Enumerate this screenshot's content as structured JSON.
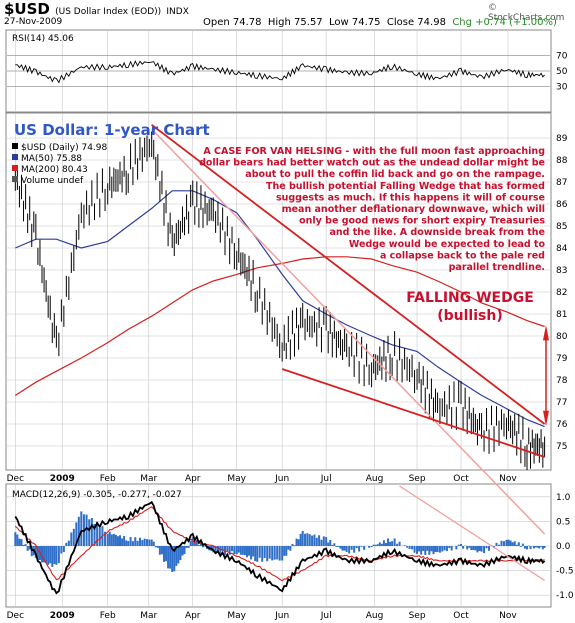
{
  "header": {
    "symbol": "$USD",
    "description": "(US Dollar Index (EOD))",
    "exchange": "INDX",
    "date": "27-Nov-2009",
    "watermark": "© StockCharts.com",
    "open": "Open 74.78",
    "high": "High 75.57",
    "low": "Low 74.75",
    "close": "Close 74.98",
    "change": "Chg +0.74 (+1.00%)"
  },
  "colors": {
    "price": "#000000",
    "ma50": "#2c3e9e",
    "ma200": "#d62020",
    "wedge": "#d62020",
    "channel": "#f2a0a0",
    "title": "#2f57c8",
    "annotation": "#c8102e",
    "macd_hist": "#2f6fc8",
    "grid": "#c8c8c8"
  },
  "rsi_panel": {
    "legend": "RSI(14) 45.06",
    "levels": [
      "70",
      "50",
      "30"
    ]
  },
  "price_panel": {
    "title": "US Dollar: 1-year Chart",
    "legend": [
      {
        "text": "$USD (Daily) 74.98",
        "color": "#000000"
      },
      {
        "text": "MA(50) 75.88",
        "color": "#2c3e9e"
      },
      {
        "text": "MA(200) 80.43",
        "color": "#d62020"
      },
      {
        "text": "Volume undef",
        "color": "#555555"
      }
    ],
    "commentary": [
      "A CASE FOR VAN HELSING - with the full moon fast approaching",
      "dollar bears had better watch out as the undead dollar might be",
      "about to pull the coffin lid back and go on the rampage.",
      "The bullish potential Falling Wedge that has formed",
      "suggests as much. If this happens it will of course",
      "mean another deflationary downwave, which will",
      "only be good news for short expiry Treasuries",
      "and the like. A downside break from the",
      "Wedge would be expected to lead to",
      "a collapse back to the pale red",
      "parallel trendline."
    ],
    "pattern_label": "FALLING WEDGE",
    "pattern_sublabel": "(bullish)",
    "y_ticks": [
      "89",
      "88",
      "87",
      "86",
      "85",
      "84",
      "83",
      "82",
      "81",
      "80",
      "79",
      "78",
      "77",
      "76",
      "75"
    ]
  },
  "macd_panel": {
    "legend": "MACD(12,26,9) -0.305, -0.277, -0.027",
    "y_ticks": [
      "1.0",
      "0.5",
      "0.0",
      "-0.5",
      "-1.0"
    ]
  },
  "x_axis": [
    "Dec",
    "2009",
    "Feb",
    "Mar",
    "Apr",
    "May",
    "Jun",
    "Jul",
    "Aug",
    "Sep",
    "Oct",
    "Nov"
  ],
  "chart_data": {
    "type": "line",
    "title": "US Dollar: 1-year Chart",
    "x": [
      "2008-12-01",
      "2008-12-15",
      "2008-12-29",
      "2009-01-15",
      "2009-02-02",
      "2009-02-16",
      "2009-03-04",
      "2009-03-18",
      "2009-04-01",
      "2009-04-15",
      "2009-05-01",
      "2009-05-15",
      "2009-06-01",
      "2009-06-15",
      "2009-07-01",
      "2009-07-15",
      "2009-08-01",
      "2009-08-15",
      "2009-09-01",
      "2009-09-15",
      "2009-10-01",
      "2009-10-15",
      "2009-11-01",
      "2009-11-15",
      "2009-11-27"
    ],
    "ylim": [
      74,
      90
    ],
    "series": [
      {
        "name": "$USD (Daily) 74.98",
        "values": [
          87.2,
          84.5,
          79.5,
          85.5,
          86.8,
          87.5,
          88.8,
          84.2,
          86.0,
          85.6,
          83.8,
          82.0,
          79.5,
          80.6,
          80.3,
          79.4,
          78.5,
          79.2,
          78.2,
          76.7,
          76.9,
          75.6,
          76.1,
          75.0,
          74.98
        ]
      },
      {
        "name": "MA(50) 75.88",
        "values": [
          84.0,
          84.4,
          84.4,
          84.0,
          84.3,
          85.0,
          85.8,
          86.6,
          86.6,
          86.2,
          85.6,
          84.4,
          82.8,
          81.6,
          81.0,
          80.5,
          80.0,
          79.6,
          79.3,
          78.6,
          77.9,
          77.3,
          76.7,
          76.2,
          75.88
        ]
      },
      {
        "name": "MA(200) 80.43",
        "values": [
          77.3,
          77.9,
          78.4,
          79.0,
          79.7,
          80.3,
          80.9,
          81.5,
          82.1,
          82.5,
          82.8,
          83.1,
          83.3,
          83.5,
          83.6,
          83.6,
          83.5,
          83.2,
          82.9,
          82.5,
          82.0,
          81.5,
          81.1,
          80.7,
          80.43
        ]
      }
    ],
    "wedge_lines": [
      {
        "from": [
          "2009-03-04",
          89.6
        ],
        "to": [
          "2009-11-27",
          76.0
        ]
      },
      {
        "from": [
          "2009-06-01",
          78.5
        ],
        "to": [
          "2009-11-27",
          74.5
        ]
      }
    ],
    "rsi": [
      58,
      49,
      37,
      55,
      55,
      58,
      62,
      46,
      56,
      52,
      48,
      44,
      40,
      57,
      52,
      48,
      47,
      56,
      46,
      40,
      50,
      42,
      52,
      45,
      45.06
    ],
    "macd": [
      0.6,
      -0.2,
      -1.0,
      0.3,
      0.5,
      0.6,
      0.9,
      -0.1,
      0.2,
      -0.1,
      -0.3,
      -0.6,
      -0.9,
      -0.3,
      -0.1,
      -0.3,
      -0.3,
      -0.1,
      -0.3,
      -0.4,
      -0.3,
      -0.4,
      -0.2,
      -0.3,
      -0.305
    ],
    "macd_signal": [
      0.4,
      0.0,
      -0.7,
      -0.2,
      0.3,
      0.5,
      0.8,
      0.3,
      0.1,
      0.0,
      -0.2,
      -0.4,
      -0.7,
      -0.5,
      -0.2,
      -0.2,
      -0.3,
      -0.2,
      -0.2,
      -0.3,
      -0.3,
      -0.3,
      -0.3,
      -0.28,
      -0.277
    ]
  }
}
